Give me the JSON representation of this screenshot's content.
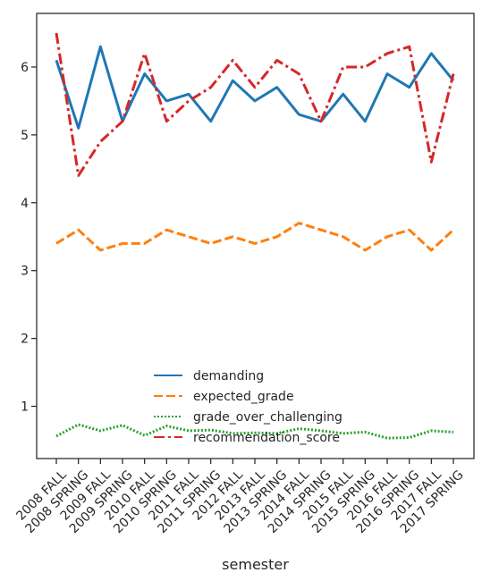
{
  "chart_data": {
    "type": "line",
    "xlabel": "semester",
    "ylabel": "",
    "ylim": [
      0.23,
      6.79
    ],
    "yticks": [
      1,
      2,
      3,
      4,
      5,
      6
    ],
    "grid": false,
    "legend_placement": "lower-center",
    "categories": [
      "2008 FALL",
      "2008 SPRING",
      "2009 FALL",
      "2009 SPRING",
      "2010 FALL",
      "2010 SPRING",
      "2011 FALL",
      "2011 SPRING",
      "2012 FALL",
      "2013 FALL",
      "2013 SPRING",
      "2014 FALL",
      "2014 SPRING",
      "2015 FALL",
      "2015 SPRING",
      "2016 FALL",
      "2016 SPRING",
      "2017 FALL",
      "2017 SPRING"
    ],
    "series": [
      {
        "name": "demanding",
        "color": "#1f77b4",
        "dash": "solid",
        "values": [
          6.1,
          5.1,
          6.3,
          5.2,
          5.9,
          5.5,
          5.6,
          5.2,
          5.8,
          5.5,
          5.7,
          5.3,
          5.2,
          5.6,
          5.2,
          5.9,
          5.7,
          6.2,
          5.8
        ]
      },
      {
        "name": "expected_grade",
        "color": "#ff7f0e",
        "dash": "dashed",
        "values": [
          3.4,
          3.6,
          3.3,
          3.4,
          3.4,
          3.6,
          3.5,
          3.4,
          3.5,
          3.4,
          3.5,
          3.7,
          3.6,
          3.5,
          3.3,
          3.5,
          3.6,
          3.3,
          3.6
        ]
      },
      {
        "name": "grade_over_challenging",
        "color": "#2ca02c",
        "dash": "dotted",
        "values": [
          0.56,
          0.73,
          0.64,
          0.72,
          0.57,
          0.71,
          0.64,
          0.65,
          0.6,
          0.61,
          0.6,
          0.67,
          0.64,
          0.6,
          0.62,
          0.53,
          0.54,
          0.64,
          0.62
        ]
      },
      {
        "name": "recommendation_score",
        "color": "#d62728",
        "dash": "dashdot",
        "values": [
          6.5,
          4.4,
          4.9,
          5.2,
          6.2,
          5.2,
          5.5,
          5.7,
          6.1,
          5.7,
          6.1,
          5.9,
          5.2,
          6.0,
          6.0,
          6.2,
          6.3,
          4.6,
          5.9
        ]
      }
    ]
  }
}
